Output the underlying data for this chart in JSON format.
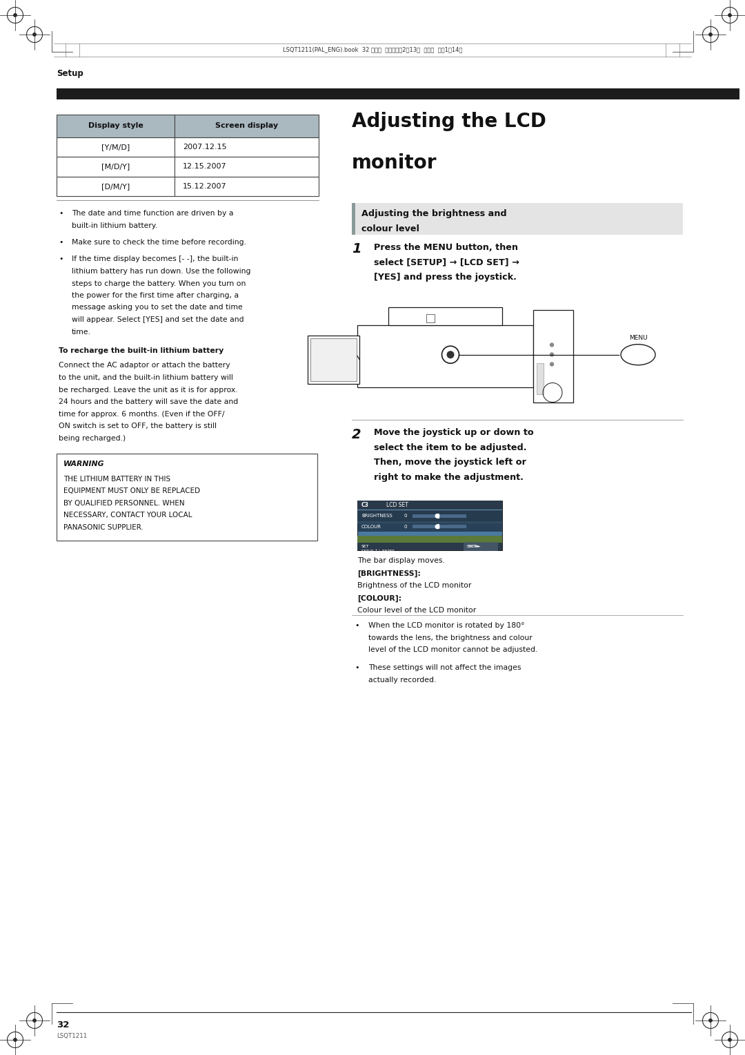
{
  "bg_color": "#ffffff",
  "page_width": 10.8,
  "page_height": 15.28,
  "header_text": "LSQT1211(PAL_ENG).book  32 ページ  ２００７年2月13日  火曜日  午後1時14分",
  "setup_label": "Setup",
  "black_bar_color": "#1c1c1c",
  "table_header_bg": "#aab8c0",
  "table_border_color": "#444444",
  "table_header_row": [
    "Display style",
    "Screen display"
  ],
  "table_rows": [
    [
      "[Y/M/D]",
      "2007.12.15"
    ],
    [
      "[M/D/Y]",
      "12.15.2007"
    ],
    [
      "[D/M/Y]",
      "15.12.2007"
    ]
  ],
  "bullet_points_left": [
    [
      "The date and time function are driven by a",
      "built-in lithium battery."
    ],
    [
      "Make sure to check the time before recording."
    ],
    [
      "If the time display becomes [- -], the built-in",
      "lithium battery has run down. Use the following",
      "steps to charge the battery. When you turn on",
      "the power for the first time after charging, a",
      "message asking you to set the date and time",
      "will appear. Select [YES] and set the date and",
      "time."
    ]
  ],
  "recharge_title": "To recharge the built-in lithium battery",
  "recharge_body": [
    "Connect the AC adaptor or attach the battery",
    "to the unit, and the built-in lithium battery will",
    "be recharged. Leave the unit as it is for approx.",
    "24 hours and the battery will save the date and",
    "time for approx. 6 months. (Even if the OFF/",
    "ON switch is set to OFF, the battery is still",
    "being recharged.)"
  ],
  "warning_box_title": "WARNING",
  "warning_box_text": [
    "THE LITHIUM BATTERY IN THIS",
    "EQUIPMENT MUST ONLY BE REPLACED",
    "BY QUALIFIED PERSONNEL. WHEN",
    "NECESSARY, CONTACT YOUR LOCAL",
    "PANASONIC SUPPLIER."
  ],
  "right_title_line1": "Adjusting the LCD",
  "right_title_line2": "monitor",
  "sub_heading_bg": "#e4e4e4",
  "sub_heading_text": [
    "Adjusting the brightness and",
    "colour level"
  ],
  "step1_num": "1",
  "step1_text": [
    "Press the MENU button, then",
    "select [SETUP] → [LCD SET] →",
    "[YES] and press the joystick."
  ],
  "step2_num": "2",
  "step2_text": [
    "Move the joystick up or down to",
    "select the item to be adjusted.",
    "Then, move the joystick left or",
    "right to make the adjustment."
  ],
  "bar_display_text": "The bar display moves.",
  "brightness_label": "[BRIGHTNESS]:",
  "brightness_desc": "Brightness of the LCD monitor",
  "colour_label": "[COLOUR]:",
  "colour_desc": "Colour level of the LCD monitor",
  "bullet_points_right": [
    [
      "When the LCD monitor is rotated by 180°",
      "towards the lens, the brightness and colour",
      "level of the LCD monitor cannot be adjusted."
    ],
    [
      "These settings will not affect the images",
      "actually recorded."
    ]
  ],
  "page_num": "32",
  "footer_code": "LSQT1211"
}
